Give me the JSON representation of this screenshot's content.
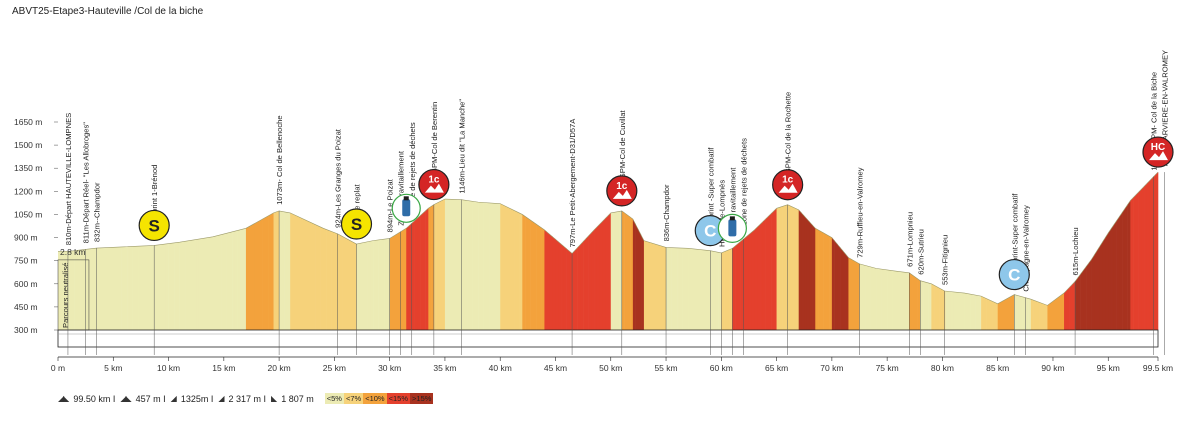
{
  "title": "ABVT25-Etape3-Hauteville /Col de la biche",
  "chart_data": {
    "type": "area",
    "ylim": [
      300,
      1650
    ],
    "yticks": [
      "1650 m",
      "1500 m",
      "1350 m",
      "1200 m",
      "1050 m",
      "900 m",
      "750 m",
      "600 m",
      "450 m",
      "300 m"
    ],
    "xlim": [
      0,
      99.5
    ],
    "xticks": [
      "0 m",
      "5 km",
      "10 km",
      "15 km",
      "20 km",
      "25 km",
      "30 km",
      "35 km",
      "40 km",
      "45 km",
      "50 km",
      "55 km",
      "60 km",
      "65 km",
      "70 km",
      "75 km",
      "80 km",
      "85 km",
      "90 km",
      "95 km",
      "99.5 km"
    ],
    "neutral_label": "2.8 km",
    "neutral_text": "Parcours neutralisé",
    "profile": [
      [
        0,
        810
      ],
      [
        1,
        811
      ],
      [
        3.5,
        832
      ],
      [
        6,
        840
      ],
      [
        8.7,
        849
      ],
      [
        11,
        870
      ],
      [
        14,
        905
      ],
      [
        17,
        960
      ],
      [
        19.5,
        1060
      ],
      [
        20,
        1073
      ],
      [
        21,
        1060
      ],
      [
        24,
        960
      ],
      [
        25.3,
        924
      ],
      [
        27,
        858
      ],
      [
        28.5,
        880
      ],
      [
        30,
        894
      ],
      [
        31.5,
        960
      ],
      [
        33.5,
        1090
      ],
      [
        34,
        1114
      ],
      [
        35,
        1150
      ],
      [
        36.5,
        1146
      ],
      [
        38,
        1130
      ],
      [
        40,
        1120
      ],
      [
        42,
        1050
      ],
      [
        44,
        950
      ],
      [
        46.5,
        797
      ],
      [
        48.5,
        950
      ],
      [
        50,
        1060
      ],
      [
        51,
        1073
      ],
      [
        52,
        1020
      ],
      [
        53,
        880
      ],
      [
        55,
        836
      ],
      [
        57,
        830
      ],
      [
        59,
        815
      ],
      [
        60,
        800
      ],
      [
        61,
        830
      ],
      [
        63,
        950
      ],
      [
        65,
        1090
      ],
      [
        66,
        1113
      ],
      [
        67,
        1080
      ],
      [
        68.5,
        960
      ],
      [
        70,
        900
      ],
      [
        71.5,
        770
      ],
      [
        72.5,
        729
      ],
      [
        74,
        700
      ],
      [
        76,
        680
      ],
      [
        77,
        671
      ],
      [
        78,
        620
      ],
      [
        79,
        600
      ],
      [
        80.2,
        553
      ],
      [
        82,
        540
      ],
      [
        83.5,
        520
      ],
      [
        85,
        470
      ],
      [
        86.5,
        530
      ],
      [
        88,
        500
      ],
      [
        89.5,
        460
      ],
      [
        91,
        540
      ],
      [
        92,
        615
      ],
      [
        93.5,
        760
      ],
      [
        95,
        930
      ],
      [
        97,
        1140
      ],
      [
        99.5,
        1325
      ]
    ],
    "labels": [
      {
        "km": 0.9,
        "text": "810m-Départ HAUTEVILLE-LOMPNES"
      },
      {
        "km": 2.5,
        "text": "811m-Départ Réel- \"Les Allobroges\""
      },
      {
        "km": 3.5,
        "text": "832m--Champdor"
      },
      {
        "km": 8.7,
        "text": "849m-Sprint 1-Brénod"
      },
      {
        "km": 20,
        "text": "1073m- Col de Bellenoche"
      },
      {
        "km": 25.3,
        "text": "924m-Les Granges du Poizat"
      },
      {
        "km": 27,
        "text": "858m--Le replat"
      },
      {
        "km": 30,
        "text": "894m-Le Poizat"
      },
      {
        "km": 31,
        "text": "Zone de ravitaillement"
      },
      {
        "km": 32,
        "text": "& Zone de rejets de déchets"
      },
      {
        "km": 34,
        "text": "1114m-GPM-Col de Berentin"
      },
      {
        "km": 36.5,
        "text": "1146m-Lieu dit \"La Manche\""
      },
      {
        "km": 46.5,
        "text": "797m-Le Petit-Abergement-D31/D57A"
      },
      {
        "km": 51,
        "text": "1073m-GPM-Col de Cuvillat"
      },
      {
        "km": 55,
        "text": "836m-Champdor"
      },
      {
        "km": 59,
        "text": "815m-Sprint -Super combatif"
      },
      {
        "km": 60,
        "text": "Hauteville-Lompnès"
      },
      {
        "km": 61,
        "text": "Zone de ravitaillement"
      },
      {
        "km": 62,
        "text": "& Zone de rejets de déchets"
      },
      {
        "km": 66,
        "text": "1113m-GPM-Col de la Rochette"
      },
      {
        "km": 72.5,
        "text": "729m-Ruffieu-en-Valromey"
      },
      {
        "km": 77,
        "text": "671m-Lompnieu"
      },
      {
        "km": 78,
        "text": "620m-Sutrieu"
      },
      {
        "km": 80.2,
        "text": "553m-Fitignieu"
      },
      {
        "km": 86.5,
        "text": "530m-Sprint-Super combatif"
      },
      {
        "km": 87.5,
        "text": "Champagne-en-Valromey"
      },
      {
        "km": 92,
        "text": "615m-Lochieu"
      },
      {
        "km": 99.1,
        "text": "1325m-GPM- Col de la Biche"
      },
      {
        "km": 100.1,
        "text": "Arrivée ARVIERE-EN-VALROMEY"
      }
    ],
    "markers": [
      {
        "km": 8.7,
        "elev": 849,
        "type": "sprint",
        "text": "S"
      },
      {
        "km": 27,
        "elev": 858,
        "type": "sprint",
        "text": "S"
      },
      {
        "km": 31.5,
        "elev": 960,
        "type": "feed",
        "text": ""
      },
      {
        "km": 34,
        "elev": 1114,
        "type": "gpm",
        "text": "1c"
      },
      {
        "km": 51,
        "elev": 1073,
        "type": "gpm",
        "text": "1c"
      },
      {
        "km": 59,
        "elev": 815,
        "type": "combat",
        "text": "C"
      },
      {
        "km": 61,
        "elev": 830,
        "type": "feed",
        "text": ""
      },
      {
        "km": 66,
        "elev": 1113,
        "type": "gpm",
        "text": "1c"
      },
      {
        "km": 86.5,
        "elev": 530,
        "type": "combat",
        "text": "C"
      },
      {
        "km": 99.5,
        "elev": 1325,
        "type": "gpm",
        "text": "HC"
      }
    ],
    "stats": [
      "99.50 km I",
      "457 m I",
      "1325m I",
      "2 317 m I",
      "1 807 m"
    ],
    "legend": [
      {
        "text": "<5%",
        "color": "#ecebb4"
      },
      {
        "text": "<7%",
        "color": "#f6d27a"
      },
      {
        "text": "<10%",
        "color": "#f3a23c"
      },
      {
        "text": "<15%",
        "color": "#e4402d"
      },
      {
        "text": ">15%",
        "color": "#a8321f"
      }
    ],
    "colors": {
      "flat": "#ecebb4",
      "mid": "#f3a23c",
      "steep": "#e4402d",
      "sprint": "#f5e400",
      "combat": "#8ec7ea",
      "gpm": "#d42525"
    }
  }
}
